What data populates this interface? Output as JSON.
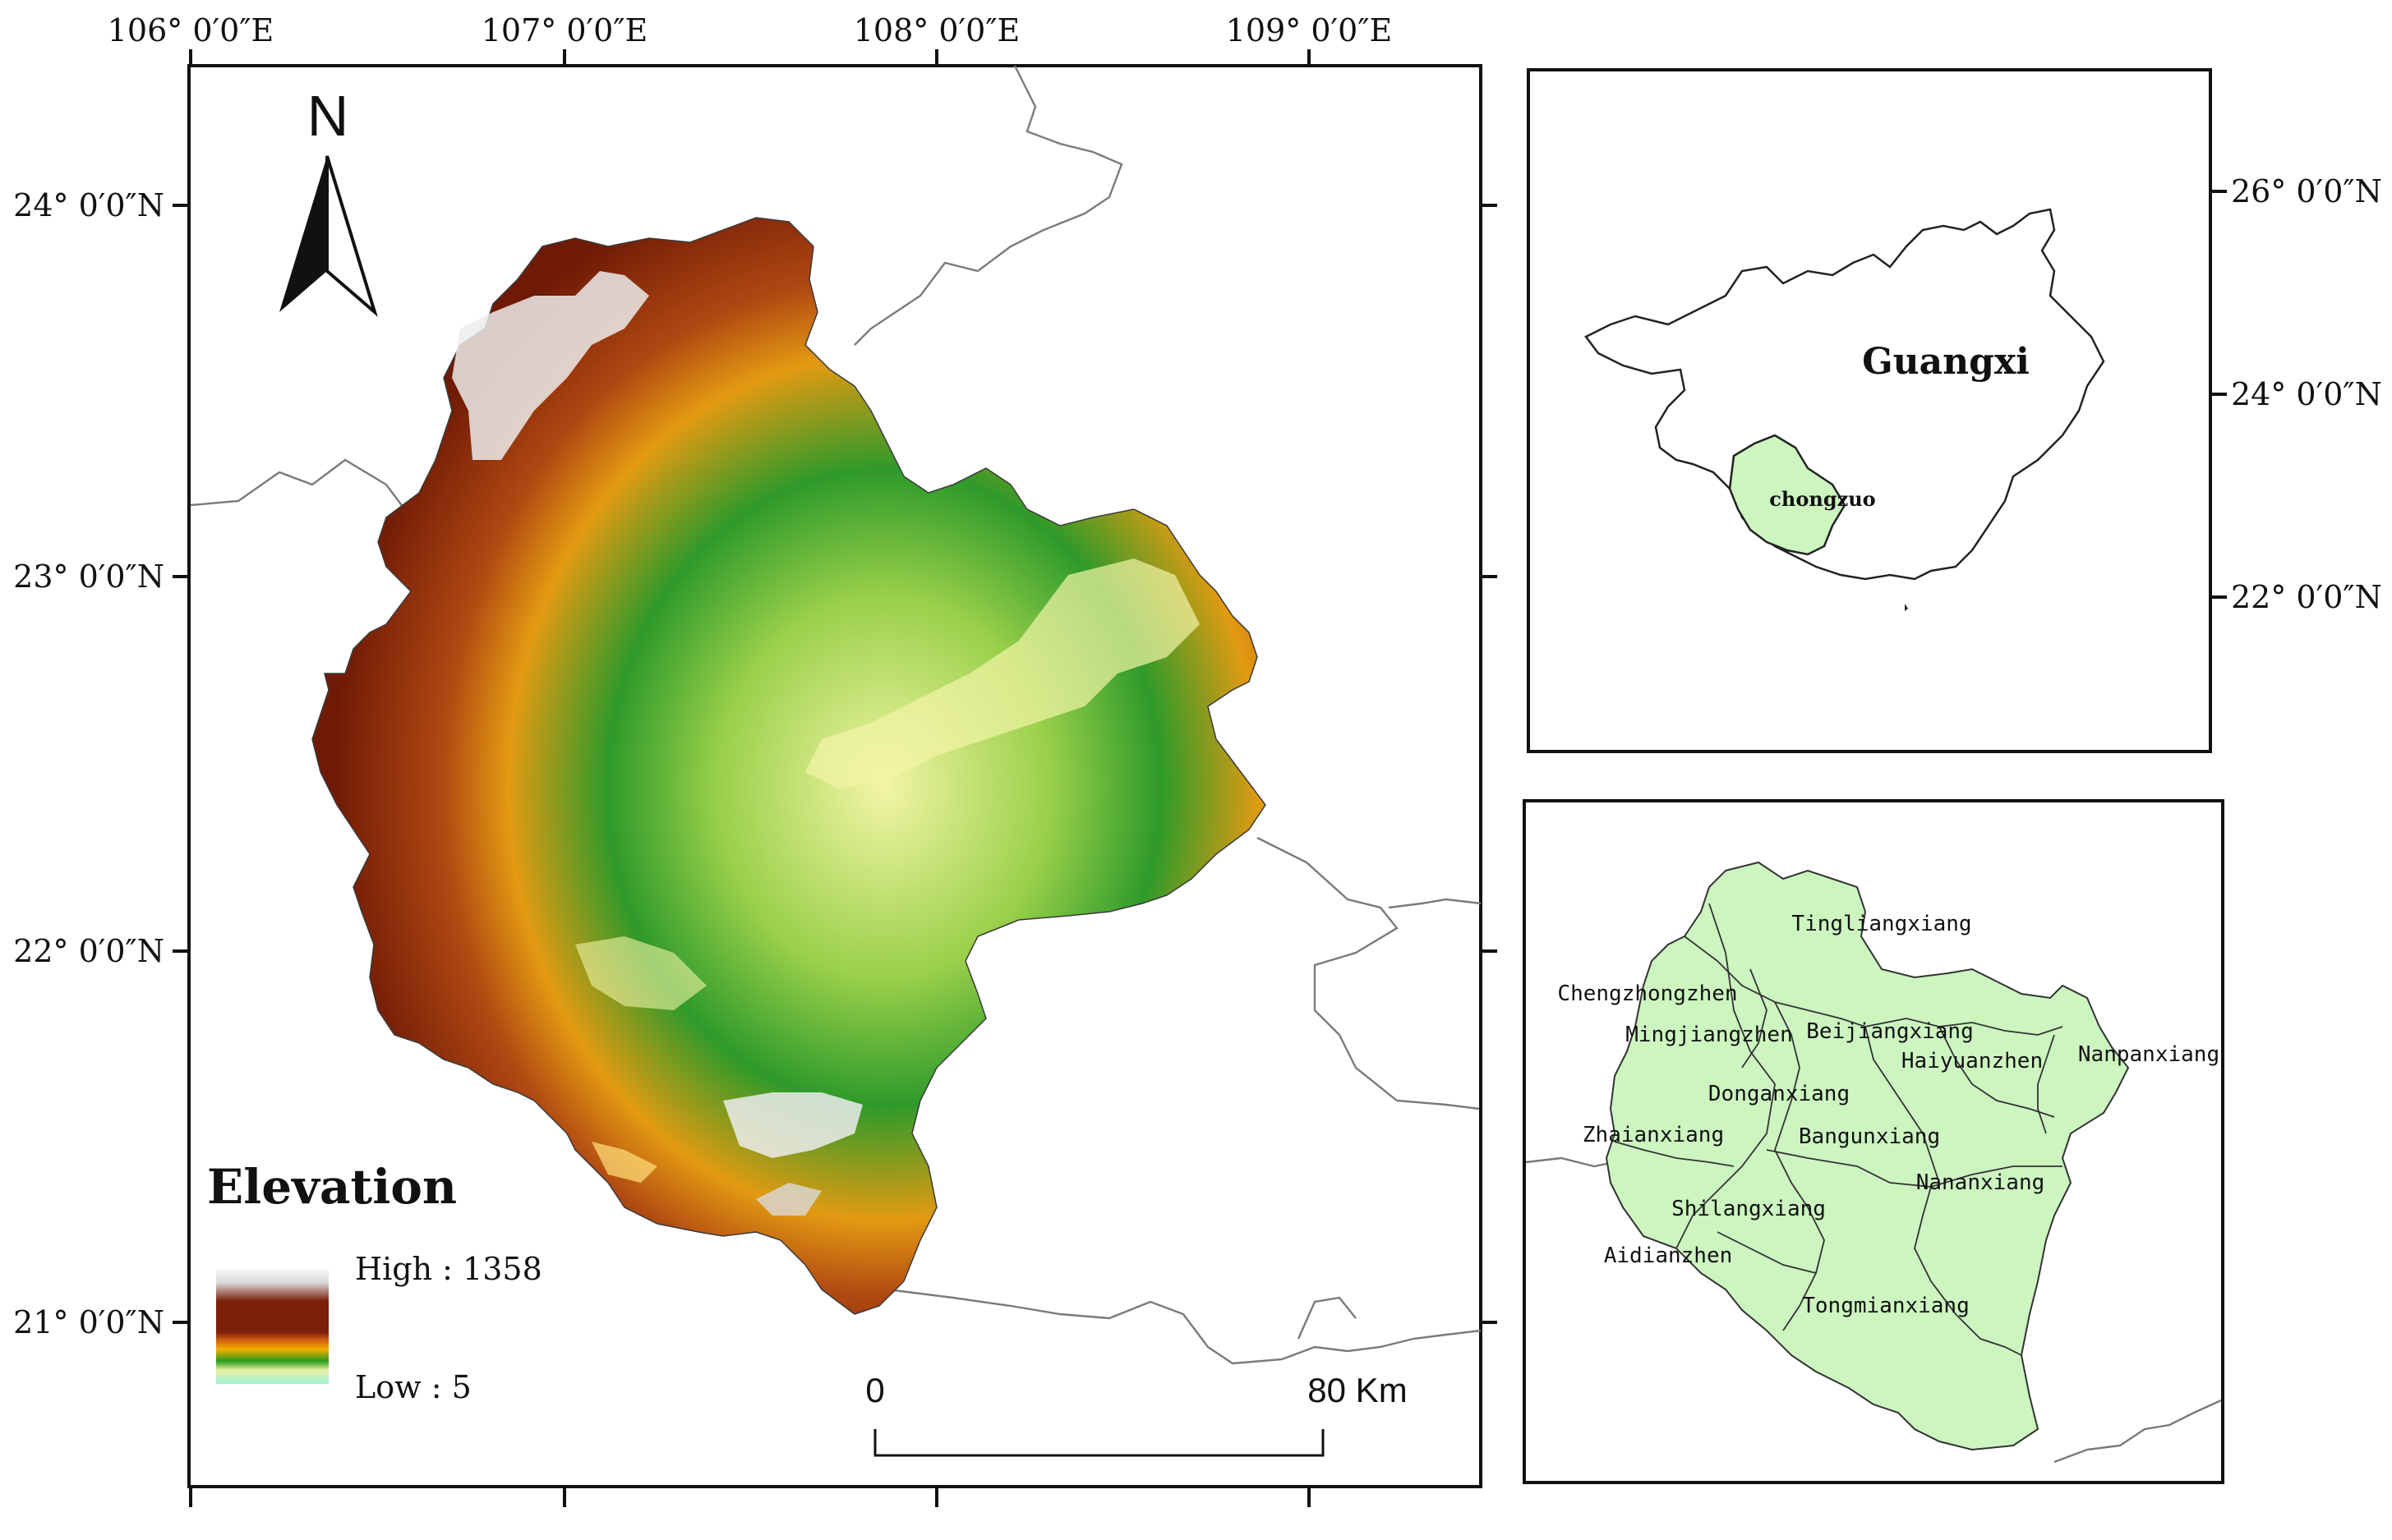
{
  "main_map": {
    "top_labels": [
      "106° 0′0″E",
      "107° 0′0″E",
      "108° 0′0″E",
      "109° 0′0″E"
    ],
    "left_labels": [
      "24° 0′0″N",
      "23° 0′0″N",
      "22° 0′0″N",
      "21° 0′0″N"
    ],
    "north_arrow_label": "N",
    "legend": {
      "title": "Elevation",
      "high_label": "High : 1358",
      "low_label": "Low : 5",
      "high_value": 1358,
      "low_value": 5
    },
    "scale_bar": {
      "start_label": "0",
      "end_label": "80 Km"
    }
  },
  "inset_guangxi": {
    "right_labels": [
      "26° 0′0″N",
      "24° 0′0″N",
      "22° 0′0″N"
    ],
    "region_label": "Guangxi",
    "city_label": "chongzuo"
  },
  "inset_towns": {
    "towns": [
      "Tingliangxiang",
      "Chengzhongzhen",
      "Mingjiangzhen",
      "Beijiangxiang",
      "Haiyuanzhen",
      "Nanpanxiang",
      "Donganxiang",
      "Zhaianxiang",
      "Bangunxiang",
      "Nananxiang",
      "Shilangxiang",
      "Aidianzhen",
      "Tongmianxiang"
    ]
  },
  "colors": {
    "high": "#f2f2f2",
    "upper": "#7b1f08",
    "mid_upper": "#b84d12",
    "mid": "#f0a000",
    "lower": "#2fa02c",
    "low": "#f4f4a2",
    "lowest": "#a6f0d4",
    "inset_fill": "#ccf5c0"
  }
}
